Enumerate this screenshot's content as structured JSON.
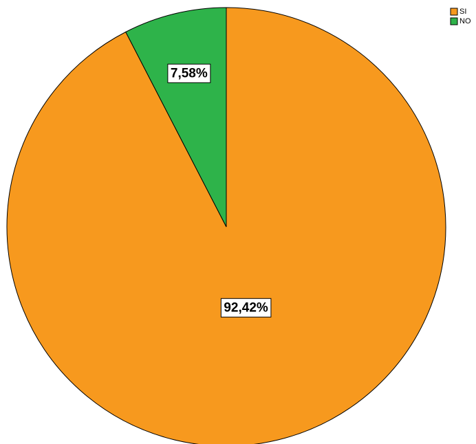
{
  "chart_data": {
    "type": "pie",
    "title": "",
    "categories": [
      "SI",
      "NO"
    ],
    "values": [
      92.42,
      7.58
    ],
    "data_labels": [
      "92,42%",
      "7,58%"
    ],
    "colors": [
      "#F7991E",
      "#2EB34A"
    ],
    "start_angle_deg": 0,
    "direction": "clockwise",
    "legend": {
      "placement": "top-right",
      "entries": [
        "SI",
        "NO"
      ]
    }
  }
}
